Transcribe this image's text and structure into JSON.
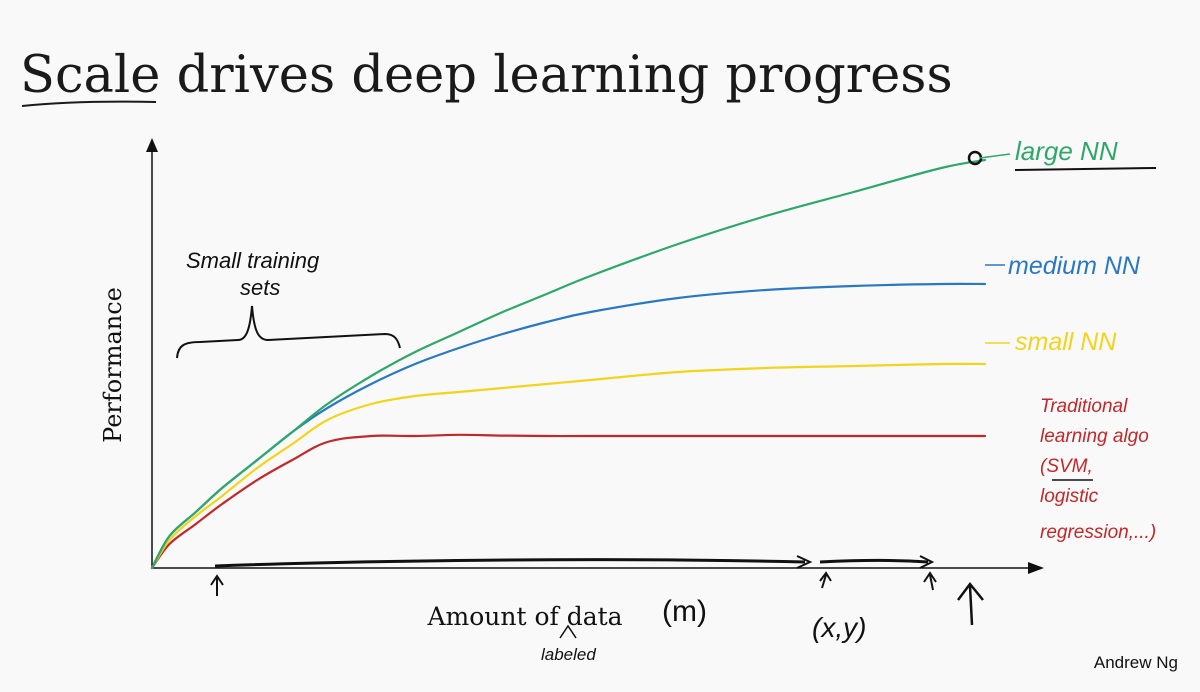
{
  "slide": {
    "title_underlined": "Scale",
    "title_rest": " drives deep learning progress",
    "author": "Andrew Ng"
  },
  "chart_data": {
    "type": "line",
    "xlabel": "Amount of data",
    "ylabel": "Performance",
    "grid": false,
    "legend": "right, labels at line ends",
    "xlim": [
      0,
      100
    ],
    "ylim": [
      0,
      100
    ],
    "x": [
      0,
      2,
      5,
      8,
      12,
      16,
      20,
      25,
      30,
      35,
      40,
      45,
      50,
      60,
      70,
      80,
      90,
      95
    ],
    "series": [
      {
        "name": "large NN",
        "color": "#2ea86a",
        "values": [
          0,
          8,
          14,
          20,
          27,
          34,
          41,
          48,
          54,
          59,
          64,
          68.5,
          73,
          81,
          88,
          94,
          100,
          102
        ]
      },
      {
        "name": "medium NN",
        "color": "#2a78c2",
        "values": [
          0,
          8,
          14,
          20,
          27,
          34,
          40,
          46,
          51,
          55,
          58.5,
          61.5,
          64,
          67.5,
          69.5,
          70.5,
          71,
          71
        ]
      },
      {
        "name": "small NN",
        "color": "#f2d41c",
        "values": [
          0,
          7,
          13,
          18,
          25,
          31,
          37,
          41,
          43,
          44,
          45,
          46,
          47,
          49,
          50,
          50.5,
          51,
          51
        ]
      },
      {
        "name": "Traditional learning algo (SVM, logistic regression,...)",
        "color": "#c0282a",
        "values": [
          0,
          6,
          11,
          16,
          22,
          27,
          31.5,
          33,
          33,
          33.3,
          33.1,
          33,
          33,
          33,
          33,
          33,
          33,
          33
        ]
      }
    ]
  },
  "annotations": {
    "large": "large NN",
    "medium": "medium NN",
    "small": "small NN",
    "traditional": [
      "Traditional",
      "learning algo",
      "(SVM,",
      "logistic",
      "regression,...)"
    ],
    "small_sets": [
      "Small training",
      "sets"
    ],
    "m_symbol": "(m)",
    "xy_symbol": "(x,y)",
    "labeled": "labeled"
  },
  "colors": {
    "axis": "#111111",
    "ink": "#111111",
    "title": "#1a1a1a",
    "background": "#f9f9f9"
  }
}
